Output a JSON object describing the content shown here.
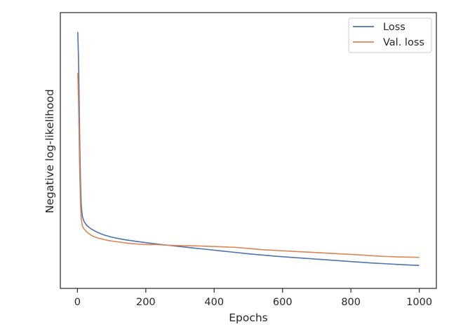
{
  "chart_data": {
    "type": "line",
    "xlabel": "Epochs",
    "ylabel": "Negative log-likelihood",
    "xlim": [
      -50,
      1050
    ],
    "ylim": [
      -0.06,
      1.08
    ],
    "x_ticks": [
      0,
      200,
      400,
      600,
      800,
      1000
    ],
    "x_tick_labels": [
      "0",
      "200",
      "400",
      "600",
      "800",
      "1000"
    ],
    "y_ticks_labeled": false,
    "grid": false,
    "legend_position": "top-right",
    "series": [
      {
        "name": "Loss",
        "color": "#4c72b0",
        "x": [
          1,
          3,
          5,
          7,
          9,
          11,
          13,
          15,
          20,
          25,
          30,
          40,
          50,
          60,
          70,
          80,
          90,
          100,
          120,
          140,
          160,
          180,
          200,
          230,
          260,
          300,
          340,
          380,
          420,
          460,
          500,
          540,
          580,
          620,
          660,
          700,
          740,
          780,
          820,
          860,
          900,
          940,
          980,
          1000
        ],
        "values": [
          1.0,
          0.9,
          0.72,
          0.52,
          0.38,
          0.29,
          0.255,
          0.235,
          0.215,
          0.205,
          0.197,
          0.186,
          0.178,
          0.171,
          0.165,
          0.16,
          0.156,
          0.152,
          0.146,
          0.141,
          0.137,
          0.133,
          0.129,
          0.124,
          0.119,
          0.113,
          0.107,
          0.101,
          0.095,
          0.089,
          0.083,
          0.078,
          0.073,
          0.069,
          0.065,
          0.061,
          0.057,
          0.053,
          0.049,
          0.045,
          0.042,
          0.039,
          0.036,
          0.035
        ]
      },
      {
        "name": "Val. loss",
        "color": "#dd8452",
        "x": [
          1,
          3,
          5,
          7,
          9,
          11,
          13,
          15,
          20,
          25,
          30,
          40,
          50,
          60,
          70,
          80,
          90,
          100,
          120,
          140,
          160,
          180,
          200,
          230,
          260,
          300,
          340,
          380,
          420,
          460,
          500,
          540,
          580,
          620,
          660,
          700,
          740,
          780,
          820,
          860,
          900,
          940,
          980,
          1000
        ],
        "values": [
          0.83,
          0.72,
          0.56,
          0.4,
          0.29,
          0.23,
          0.21,
          0.195,
          0.185,
          0.177,
          0.17,
          0.16,
          0.153,
          0.148,
          0.145,
          0.141,
          0.138,
          0.136,
          0.132,
          0.128,
          0.125,
          0.123,
          0.121,
          0.121,
          0.119,
          0.117,
          0.116,
          0.114,
          0.112,
          0.11,
          0.105,
          0.1,
          0.097,
          0.094,
          0.091,
          0.088,
          0.085,
          0.082,
          0.079,
          0.075,
          0.072,
          0.07,
          0.069,
          0.068
        ]
      }
    ]
  }
}
